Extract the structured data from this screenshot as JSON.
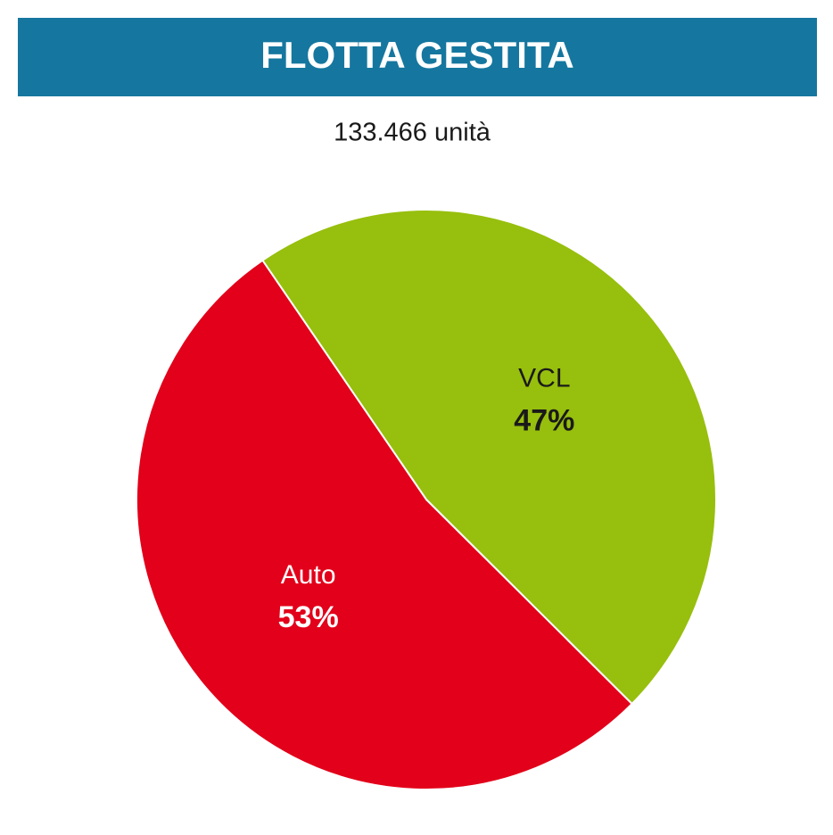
{
  "chart_data": {
    "type": "pie",
    "title": "FLOTTA GESTITA",
    "subtitle": "133.466 unità",
    "categories": [
      "VCL",
      "Auto"
    ],
    "values": [
      47,
      53
    ],
    "value_labels": [
      "47%",
      "53%"
    ],
    "colors": [
      "#97bf0d",
      "#e2001a"
    ],
    "label_colors": [
      "#1a1a1a",
      "#ffffff"
    ]
  }
}
